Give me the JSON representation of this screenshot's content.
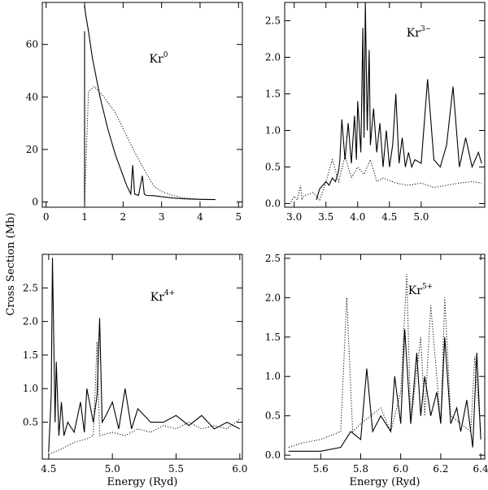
{
  "figure": {
    "ylabel": "Cross Section (Mb)",
    "xlabel": "Energy (Ryd)"
  },
  "chart_data": [
    {
      "type": "line",
      "ion": "Kr",
      "charge": "0",
      "xlim": [
        -0.1,
        5.1
      ],
      "ylim": [
        -2,
        76
      ],
      "xticks": [
        0,
        1,
        2,
        3,
        4,
        5
      ],
      "xtick_labels": [
        "0",
        "1",
        "2",
        "3",
        "4",
        "5"
      ],
      "yticks": [
        0,
        20,
        40,
        60
      ],
      "ytick_labels": [
        "0",
        "20",
        "40",
        "60"
      ],
      "xlabel": "",
      "series": [
        {
          "name": "solid",
          "style": "solid",
          "x": [
            1.0,
            1.02,
            1.1,
            1.2,
            1.4,
            1.6,
            1.8,
            2.0,
            2.1,
            2.2,
            2.25,
            2.3,
            2.4,
            2.5,
            2.55,
            2.6,
            2.8,
            3.0,
            3.3,
            3.6,
            4.0,
            4.4
          ],
          "y": [
            75,
            72,
            65,
            55,
            40,
            28,
            18,
            10,
            6,
            3,
            14,
            3,
            2.5,
            10,
            3,
            2.5,
            2.4,
            2,
            1.5,
            1.2,
            1.0,
            0.9
          ]
        },
        {
          "name": "dotted",
          "style": "dotted",
          "x": [
            1.0,
            1.1,
            1.25,
            1.5,
            1.8,
            2.0,
            2.3,
            2.6,
            2.8,
            3.0,
            3.3,
            3.6,
            4.0,
            4.4
          ],
          "y": [
            0,
            42,
            44,
            40,
            34,
            28,
            19,
            11,
            6,
            4,
            2.5,
            1.5,
            1.0,
            0.9
          ]
        },
        {
          "name": "threshold",
          "style": "solid",
          "x": [
            1.0,
            1.0
          ],
          "y": [
            0,
            65
          ]
        }
      ]
    },
    {
      "type": "line",
      "ion": "Kr",
      "charge": "3−",
      "xlim": [
        2.85,
        6.0
      ],
      "ylim": [
        -0.05,
        2.75
      ],
      "xticks": [
        3.0,
        3.5,
        4.0,
        4.5,
        5.0
      ],
      "xtick_labels": [
        "3.0",
        "3.5",
        "4.0",
        "4.5",
        "5.0"
      ],
      "yticks": [
        0.0,
        0.5,
        1.0,
        1.5,
        2.0,
        2.5
      ],
      "ytick_labels": [
        "0.0",
        "0.5",
        "1.0",
        "1.5",
        "2.0",
        "2.5"
      ],
      "xlabel": "",
      "series": [
        {
          "name": "solid",
          "style": "solid",
          "x": [
            3.35,
            3.4,
            3.5,
            3.55,
            3.6,
            3.65,
            3.7,
            3.72,
            3.75,
            3.8,
            3.85,
            3.9,
            3.95,
            3.98,
            4.0,
            4.05,
            4.08,
            4.1,
            4.12,
            4.15,
            4.18,
            4.2,
            4.25,
            4.3,
            4.35,
            4.4,
            4.45,
            4.5,
            4.55,
            4.6,
            4.65,
            4.7,
            4.75,
            4.8,
            4.85,
            4.9,
            5.0,
            5.1,
            5.2,
            5.3,
            5.4,
            5.5,
            5.6,
            5.7,
            5.8,
            5.9,
            5.95
          ],
          "y": [
            0.05,
            0.2,
            0.3,
            0.25,
            0.35,
            0.3,
            0.45,
            0.6,
            1.15,
            0.6,
            1.1,
            0.55,
            1.2,
            0.6,
            1.4,
            0.7,
            2.4,
            0.9,
            2.75,
            1.0,
            2.1,
            0.8,
            1.3,
            0.7,
            1.1,
            0.5,
            1.0,
            0.5,
            0.8,
            1.5,
            0.55,
            0.9,
            0.5,
            0.7,
            0.5,
            0.6,
            0.55,
            1.7,
            0.6,
            0.5,
            0.8,
            1.6,
            0.5,
            0.9,
            0.5,
            0.7,
            0.55
          ]
        },
        {
          "name": "dotted",
          "style": "dotted",
          "x": [
            2.95,
            3.0,
            3.05,
            3.1,
            3.12,
            3.15,
            3.2,
            3.3,
            3.4,
            3.5,
            3.6,
            3.7,
            3.8,
            3.9,
            4.0,
            4.1,
            4.2,
            4.3,
            4.4,
            4.6,
            4.8,
            5.0,
            5.2,
            5.4,
            5.6,
            5.8,
            5.95
          ],
          "y": [
            0.02,
            0.1,
            0.05,
            0.25,
            0.05,
            0.1,
            0.12,
            0.15,
            0.05,
            0.3,
            0.6,
            0.3,
            0.65,
            0.35,
            0.5,
            0.4,
            0.6,
            0.3,
            0.35,
            0.28,
            0.25,
            0.28,
            0.22,
            0.25,
            0.28,
            0.3,
            0.28
          ]
        }
      ]
    },
    {
      "type": "line",
      "ion": "Kr",
      "charge": "4+",
      "xlim": [
        4.45,
        6.02
      ],
      "ylim": [
        -0.05,
        3.0
      ],
      "xticks": [
        4.5,
        5.0,
        5.5,
        6.0
      ],
      "xtick_labels": [
        "4.5",
        "5.0",
        "5.5",
        "6.0"
      ],
      "yticks": [
        0.5,
        1.0,
        1.5,
        2.0,
        2.5
      ],
      "ytick_labels": [
        "0.5",
        "1.0",
        "1.5",
        "2.0",
        "2.5"
      ],
      "xlabel": "Energy (Ryd)",
      "series": [
        {
          "name": "solid",
          "style": "solid",
          "x": [
            4.5,
            4.52,
            4.53,
            4.55,
            4.56,
            4.58,
            4.6,
            4.62,
            4.65,
            4.7,
            4.75,
            4.78,
            4.8,
            4.85,
            4.88,
            4.9,
            4.92,
            4.95,
            5.0,
            5.05,
            5.1,
            5.15,
            5.2,
            5.3,
            5.4,
            5.5,
            5.6,
            5.7,
            5.8,
            5.9,
            6.0
          ],
          "y": [
            0.05,
            0.9,
            2.95,
            0.5,
            1.4,
            0.3,
            0.8,
            0.3,
            0.5,
            0.35,
            0.8,
            0.35,
            1.0,
            0.5,
            0.9,
            2.05,
            0.5,
            0.6,
            0.8,
            0.4,
            1.0,
            0.4,
            0.7,
            0.5,
            0.5,
            0.6,
            0.45,
            0.6,
            0.4,
            0.5,
            0.4
          ]
        },
        {
          "name": "dotted",
          "style": "dotted",
          "x": [
            4.5,
            4.6,
            4.7,
            4.8,
            4.85,
            4.88,
            4.9,
            5.0,
            5.1,
            5.2,
            5.3,
            5.4,
            5.5,
            5.6,
            5.7,
            5.8,
            5.9,
            6.0
          ],
          "y": [
            0.02,
            0.1,
            0.2,
            0.25,
            0.3,
            1.7,
            0.3,
            0.35,
            0.3,
            0.4,
            0.35,
            0.45,
            0.4,
            0.5,
            0.4,
            0.45,
            0.4,
            0.55
          ]
        }
      ]
    },
    {
      "type": "line",
      "ion": "Kr",
      "charge": "5+",
      "xlim": [
        5.42,
        6.42
      ],
      "ylim": [
        -0.05,
        2.55
      ],
      "xticks": [
        5.6,
        5.8,
        6.0,
        6.2,
        6.4
      ],
      "xtick_labels": [
        "5.6",
        "5.8",
        "6.0",
        "6.2",
        "6.4"
      ],
      "yticks": [
        0.0,
        0.5,
        1.0,
        1.5,
        2.0,
        2.5
      ],
      "ytick_labels": [
        "0.0",
        "0.5",
        "1.0",
        "1.5",
        "2.0",
        "2.5"
      ],
      "xlabel": "Energy (Ryd)",
      "series": [
        {
          "name": "solid",
          "style": "solid",
          "x": [
            5.44,
            5.6,
            5.7,
            5.75,
            5.8,
            5.83,
            5.86,
            5.9,
            5.95,
            5.97,
            6.0,
            6.02,
            6.05,
            6.08,
            6.1,
            6.12,
            6.15,
            6.18,
            6.2,
            6.22,
            6.25,
            6.28,
            6.3,
            6.33,
            6.36,
            6.38,
            6.4
          ],
          "y": [
            0.05,
            0.05,
            0.1,
            0.3,
            0.2,
            1.1,
            0.3,
            0.5,
            0.3,
            1.0,
            0.4,
            1.6,
            0.4,
            1.3,
            0.5,
            1.0,
            0.5,
            0.8,
            0.4,
            1.5,
            0.4,
            0.6,
            0.3,
            0.7,
            0.1,
            1.3,
            0.2
          ]
        },
        {
          "name": "dotted",
          "style": "dotted",
          "x": [
            5.44,
            5.5,
            5.6,
            5.7,
            5.73,
            5.76,
            5.8,
            5.9,
            5.95,
            6.0,
            6.03,
            6.05,
            6.1,
            6.12,
            6.15,
            6.2,
            6.22,
            6.25,
            6.3,
            6.35,
            6.37,
            6.4
          ],
          "y": [
            0.1,
            0.15,
            0.2,
            0.3,
            2.0,
            0.3,
            0.4,
            0.6,
            0.3,
            0.8,
            2.3,
            0.4,
            1.5,
            0.5,
            1.9,
            0.4,
            2.0,
            0.5,
            0.4,
            0.3,
            1.25,
            0.3
          ]
        }
      ]
    }
  ]
}
